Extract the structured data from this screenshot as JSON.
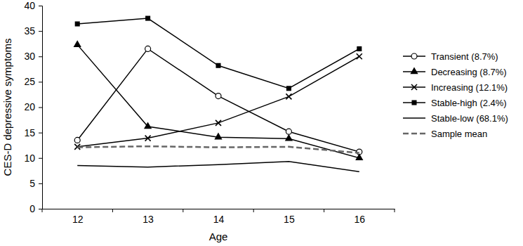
{
  "chart_data": {
    "type": "line",
    "x_label": "Age",
    "y_label": "CES-D depressive symptoms",
    "categories": [
      "12",
      "13",
      "14",
      "15",
      "16"
    ],
    "ylim": [
      0,
      40
    ],
    "yticks": [
      0,
      5,
      10,
      15,
      20,
      25,
      30,
      35,
      40
    ],
    "grid": false,
    "legend": "right",
    "series": [
      {
        "name": "Transient (8.7%)",
        "color": "#000000",
        "marker": "circle-open",
        "line_style": "solid",
        "values": [
          13.5,
          31.5,
          22.2,
          15.2,
          11.2
        ]
      },
      {
        "name": "Decreasing (8.7%)",
        "color": "#000000",
        "marker": "triangle",
        "line_style": "solid",
        "values": [
          32.3,
          16.2,
          14.1,
          13.8,
          10.0
        ]
      },
      {
        "name": "Increasing (12.1%)",
        "color": "#000000",
        "marker": "x",
        "line_style": "solid",
        "values": [
          12.2,
          13.9,
          16.9,
          22.1,
          30.0
        ]
      },
      {
        "name": "Stable-high (2.4%)",
        "color": "#000000",
        "marker": "square",
        "line_style": "solid",
        "values": [
          36.4,
          37.5,
          28.2,
          23.7,
          31.5
        ]
      },
      {
        "name": "Stable-low (68.1%)",
        "color": "#000000",
        "marker": "none",
        "line_style": "solid",
        "values": [
          8.5,
          8.2,
          8.7,
          9.3,
          7.3
        ]
      },
      {
        "name": "Sample mean",
        "color": "#666666",
        "marker": "none",
        "line_style": "dashed",
        "values": [
          12.1,
          12.3,
          12.1,
          12.2,
          11.0
        ]
      }
    ]
  }
}
